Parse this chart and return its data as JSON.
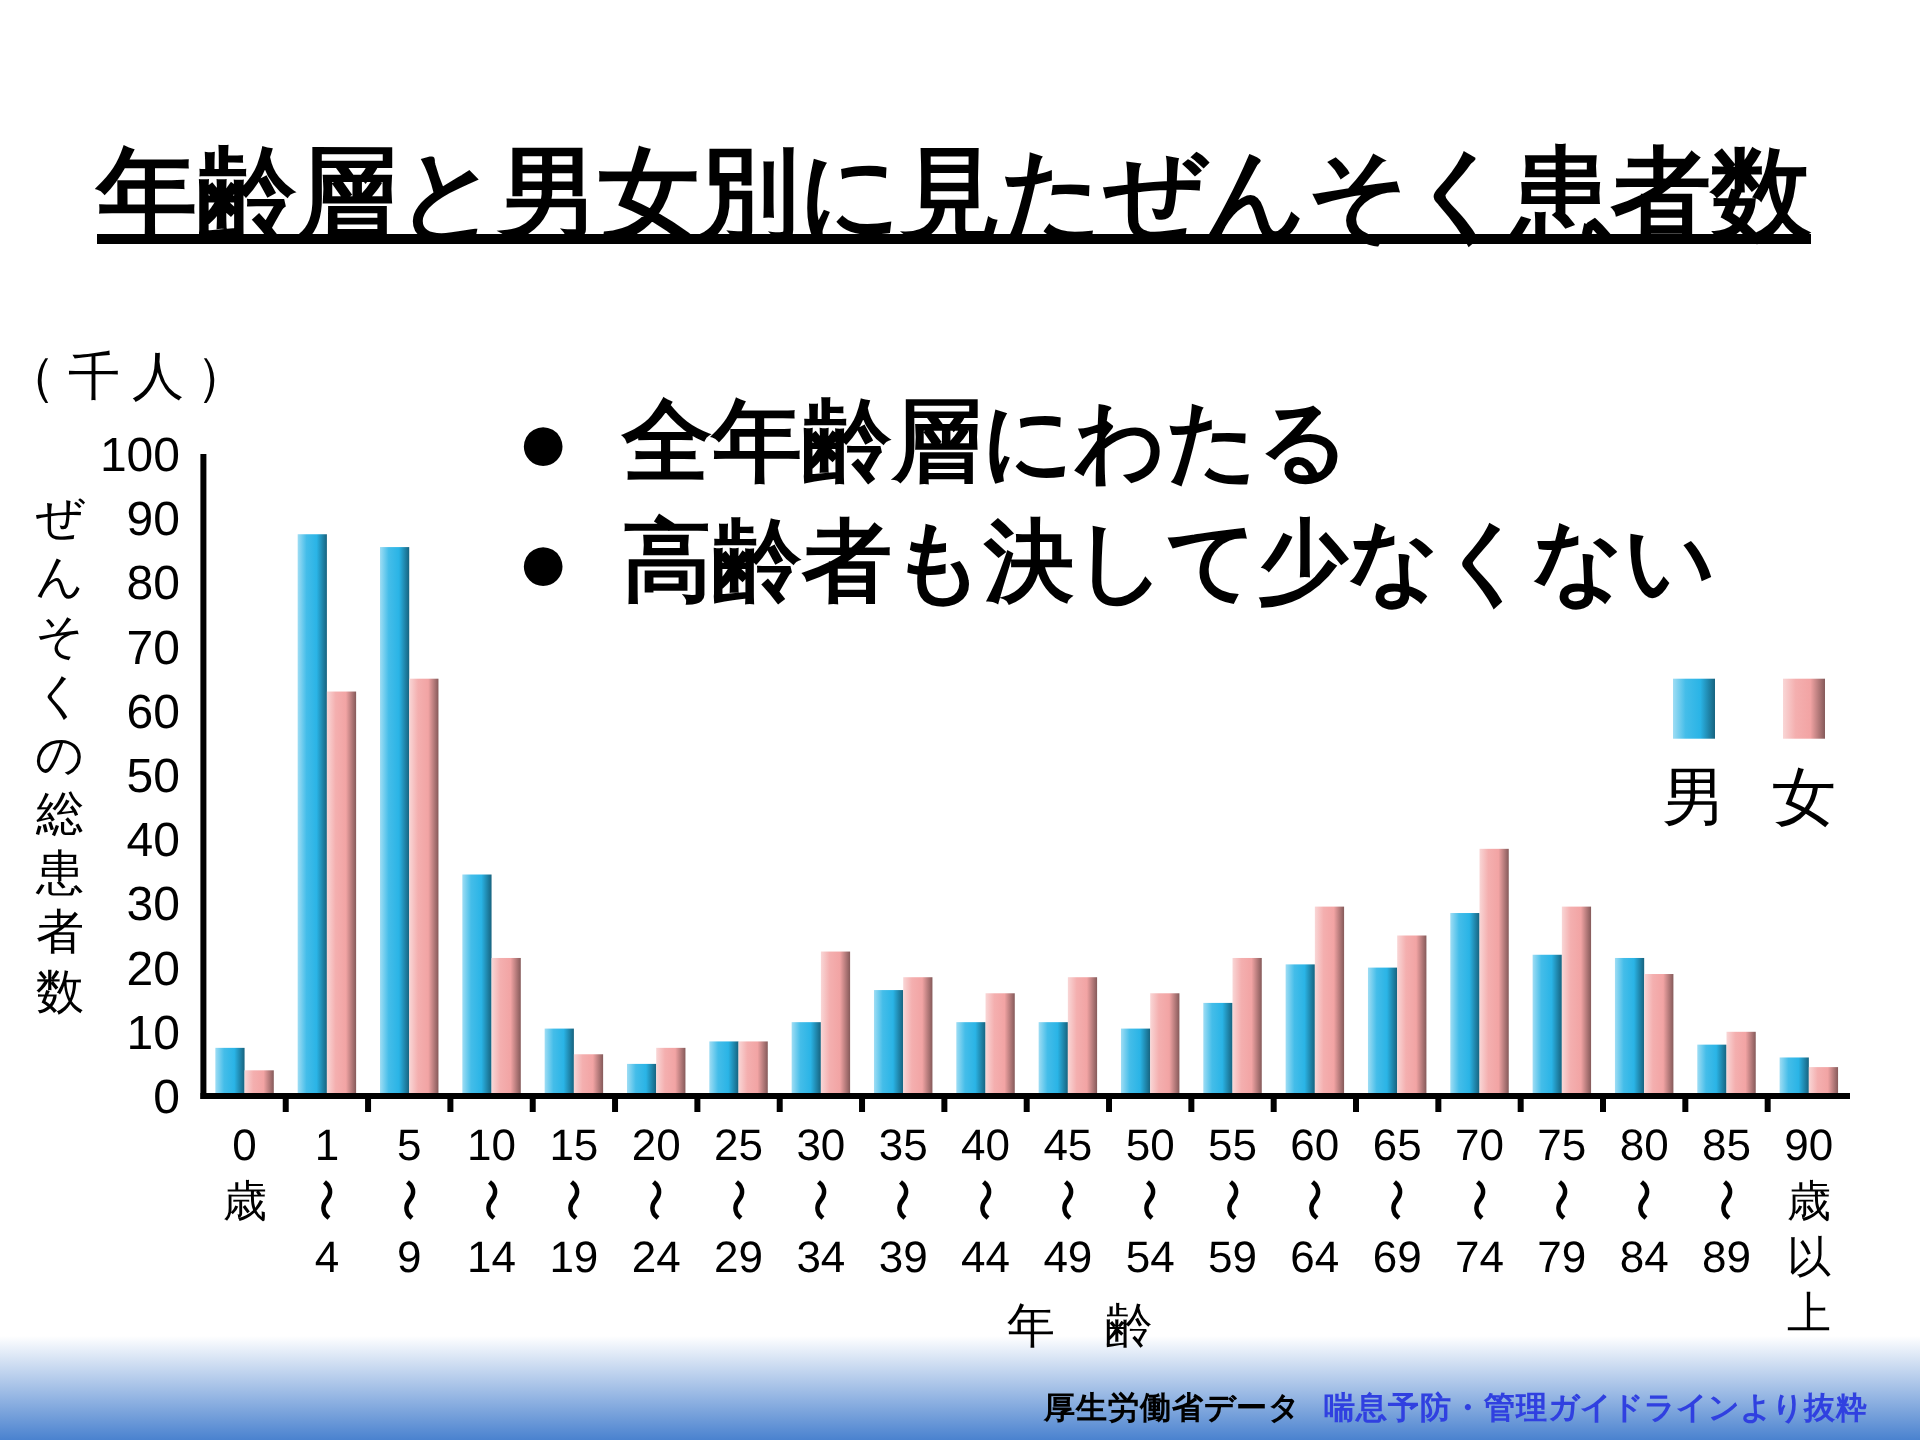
{
  "chart_data": {
    "type": "bar",
    "title": "年齢層と男女別に見たぜんそく患者数",
    "xlabel": "年 齢",
    "ylabel": "ぜんそくの総患者数",
    "annotations": [
      "（千人）",
      "● 全年齢層にわたる",
      "● 高齢者も決して少なくない",
      "厚生労働省データ",
      "喘息予防・管理ガイドラインより抜粋"
    ],
    "categories": [
      "0歳",
      "1〜4",
      "5〜9",
      "10〜14",
      "15〜19",
      "20〜24",
      "25〜29",
      "30〜34",
      "35〜39",
      "40〜44",
      "45〜49",
      "50〜54",
      "55〜59",
      "60〜64",
      "65〜69",
      "70〜74",
      "75〜79",
      "80〜84",
      "85〜89",
      "90歳以上"
    ],
    "series": [
      {
        "name": "男",
        "color": "#2ab4e6",
        "values": [
          7.5,
          87.5,
          85.5,
          34.5,
          10.5,
          5,
          8.5,
          11.5,
          16.5,
          11.5,
          11.5,
          10.5,
          14.5,
          20.5,
          20,
          28.5,
          22,
          21.5,
          8,
          6
        ]
      },
      {
        "name": "女",
        "color": "#f2a4a4",
        "values": [
          4,
          63,
          65,
          21.5,
          6.5,
          7.5,
          8.5,
          22.5,
          18.5,
          16,
          18.5,
          16,
          21.5,
          29.5,
          25,
          38.5,
          29.5,
          19,
          10,
          4.5
        ]
      }
    ],
    "ylim": [
      0,
      100
    ],
    "yticks": [
      0,
      10,
      20,
      30,
      40,
      50,
      60,
      70,
      80,
      90,
      100
    ],
    "grid": false,
    "legend": "top right"
  }
}
